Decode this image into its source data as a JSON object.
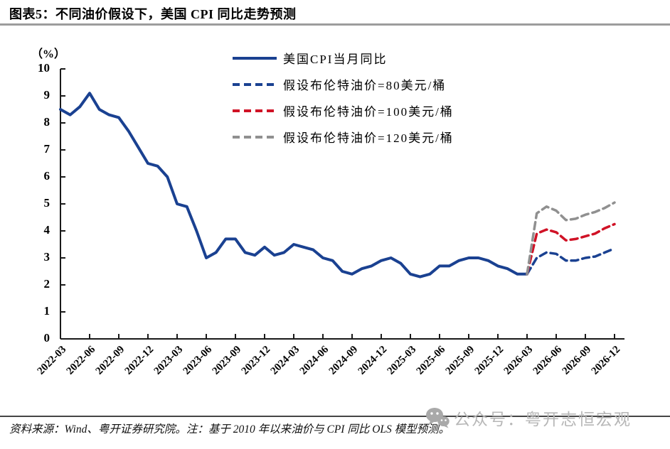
{
  "page": {
    "title": "图表5：不同油价假设下，美国 CPI 同比走势预测",
    "source_note": "资料来源：Wind、粤开证券研究院。注：基于 2010 年以来油价与 CPI 同比 OLS 模型预测。",
    "watermark": "公众号：粤开志恒宏观"
  },
  "chart_data": {
    "type": "line",
    "title": "不同油价假设下，美国CPI同比走势预测",
    "unit_label": "（%）",
    "ylim": [
      0,
      10
    ],
    "y_ticks": [
      0,
      1,
      2,
      3,
      4,
      5,
      6,
      7,
      8,
      9,
      10
    ],
    "grid": false,
    "legend_position": "top-center",
    "x_start": "2022-03",
    "x_end": "2026-12",
    "months_total": 58,
    "x_tick_interval_months": 3,
    "x_tick_labels": [
      "2022-03",
      "2022-06",
      "2022-09",
      "2022-12",
      "2023-03",
      "2023-06",
      "2023-09",
      "2023-12",
      "2024-03",
      "2024-06",
      "2024-09",
      "2024-12",
      "2025-03",
      "2025-06",
      "2025-09",
      "2025-12",
      "2026-03",
      "2026-06",
      "2026-09",
      "2026-12"
    ],
    "series": [
      {
        "name": "美国CPI当月同比",
        "style": "solid",
        "color": "#1a4191",
        "start_month_index": 0,
        "values": [
          8.5,
          8.3,
          8.6,
          9.1,
          8.5,
          8.3,
          8.2,
          7.7,
          7.1,
          6.5,
          6.4,
          6.0,
          5.0,
          4.9,
          4.0,
          3.0,
          3.2,
          3.7,
          3.7,
          3.2,
          3.1,
          3.4,
          3.1,
          3.2,
          3.5,
          3.4,
          3.3,
          3.0,
          2.9,
          2.5,
          2.4,
          2.6,
          2.7,
          2.9,
          3.0,
          2.8,
          2.4,
          2.3,
          2.4,
          2.7,
          2.7,
          2.9,
          3.0,
          3.0,
          2.9,
          2.7,
          2.6,
          2.4,
          2.4
        ]
      },
      {
        "name": "假设布伦特油价=80美元/桶",
        "style": "dashed",
        "color": "#1a4191",
        "start_month_index": 48,
        "values": [
          2.4,
          3.0,
          3.2,
          3.15,
          2.9,
          2.9,
          3.0,
          3.05,
          3.2,
          3.35
        ]
      },
      {
        "name": "假设布伦特油价=100美元/桶",
        "style": "dashed",
        "color": "#d01226",
        "start_month_index": 48,
        "values": [
          2.4,
          3.9,
          4.05,
          3.95,
          3.65,
          3.7,
          3.8,
          3.9,
          4.1,
          4.25
        ]
      },
      {
        "name": "假设布伦特油价=120美元/桶",
        "style": "dashed",
        "color": "#909090",
        "start_month_index": 48,
        "values": [
          2.4,
          4.65,
          4.9,
          4.75,
          4.4,
          4.45,
          4.6,
          4.7,
          4.85,
          5.05
        ]
      }
    ]
  }
}
